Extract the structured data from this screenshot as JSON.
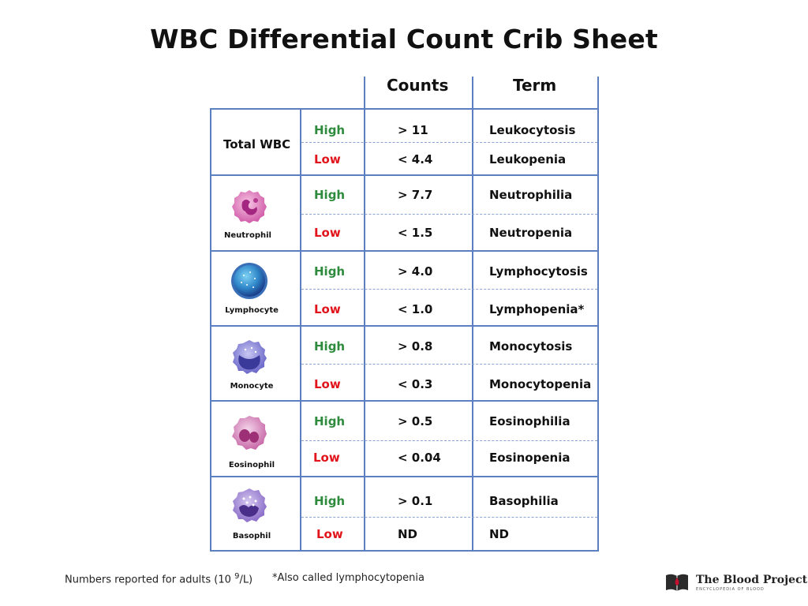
{
  "title": "WBC Differential Count Crib Sheet",
  "headers": {
    "counts": "Counts",
    "term": "Term"
  },
  "total_wbc": {
    "label": "Total WBC",
    "high": {
      "level": "High",
      "count": "> 11",
      "term": "Leukocytosis"
    },
    "low": {
      "level": "Low",
      "count": "< 4.4",
      "term": "Leukopenia"
    }
  },
  "cells": [
    {
      "name": "Neutrophil",
      "high": {
        "level": "High",
        "count": "> 7.7",
        "term": "Neutrophilia"
      },
      "low": {
        "level": "Low",
        "count": "< 1.5",
        "term": "Neutropenia"
      }
    },
    {
      "name": "Lymphocyte",
      "high": {
        "level": "High",
        "count": "> 4.0",
        "term": "Lymphocytosis"
      },
      "low": {
        "level": "Low",
        "count": "< 1.0",
        "term": "Lymphopenia*"
      }
    },
    {
      "name": "Monocyte",
      "high": {
        "level": "High",
        "count": "> 0.8",
        "term": "Monocytosis"
      },
      "low": {
        "level": "Low",
        "count": "< 0.3",
        "term": "Monocytopenia"
      }
    },
    {
      "name": "Eosinophil",
      "high": {
        "level": "High",
        "count": "> 0.5",
        "term": "Eosinophilia"
      },
      "low": {
        "level": "Low",
        "count": "< 0.04",
        "term": "Eosinopenia"
      }
    },
    {
      "name": "Basophil",
      "high": {
        "level": "High",
        "count": "> 0.1",
        "term": "Basophilia"
      },
      "low": {
        "level": "Low",
        "count": "ND",
        "term": "ND"
      }
    }
  ],
  "footnotes": {
    "units_prefix": "Numbers reported for adults (10",
    "units_exp": "9",
    "units_suffix": "/L)",
    "asterisk": "*Also called lymphocytopenia"
  },
  "logo": {
    "name": "The Blood Project",
    "subtitle": "ENCYCLOPEDIA OF BLOOD"
  },
  "colors": {
    "high": "#2e8b3d",
    "low": "#e0141a",
    "grid": "#5b7fc0"
  }
}
